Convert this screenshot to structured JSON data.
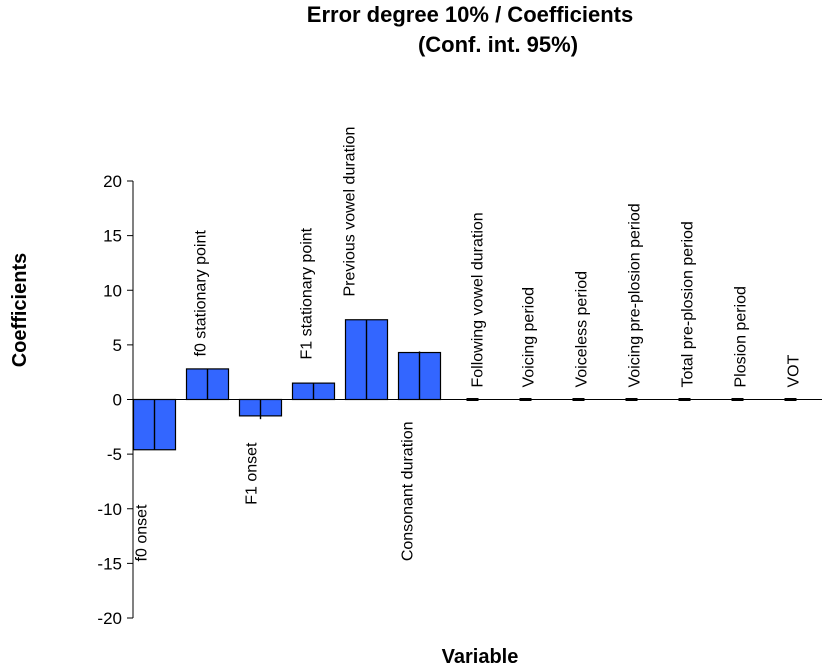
{
  "chart_data": {
    "type": "bar",
    "title_line1": "Error degree 10% / Coefficients",
    "title_line2": "(Conf. int. 95%)",
    "xlabel": "Variable",
    "ylabel": "Coefficients",
    "ylim": [
      -20,
      20
    ],
    "yticks": [
      20,
      15,
      10,
      5,
      0,
      -5,
      -10,
      -15,
      -20
    ],
    "categories": [
      "f0 onset",
      "f0 stationary point",
      "F1 onset",
      "F1 stationary point",
      "Previous vowel duration",
      "Consonant duration",
      "Following vowel duration",
      "Voicing period",
      "Voiceless period",
      "Voicing pre-plosion period",
      "Total pre-plosion period",
      "Plosion period",
      "VOT"
    ],
    "values": [
      -4.6,
      2.8,
      -1.5,
      1.5,
      7.3,
      4.3,
      0,
      0,
      0,
      0,
      0,
      0,
      0
    ],
    "ci_upper": [
      -4.6,
      2.8,
      -1.2,
      1.5,
      7.3,
      4.4,
      0,
      0,
      0,
      0,
      0,
      0,
      0
    ],
    "ci_lower": [
      -4.6,
      2.8,
      -1.8,
      1.5,
      4.3,
      4.3,
      0,
      0,
      0,
      0,
      0,
      0,
      0
    ],
    "bar_color": "#3366ff",
    "grid": false
  }
}
